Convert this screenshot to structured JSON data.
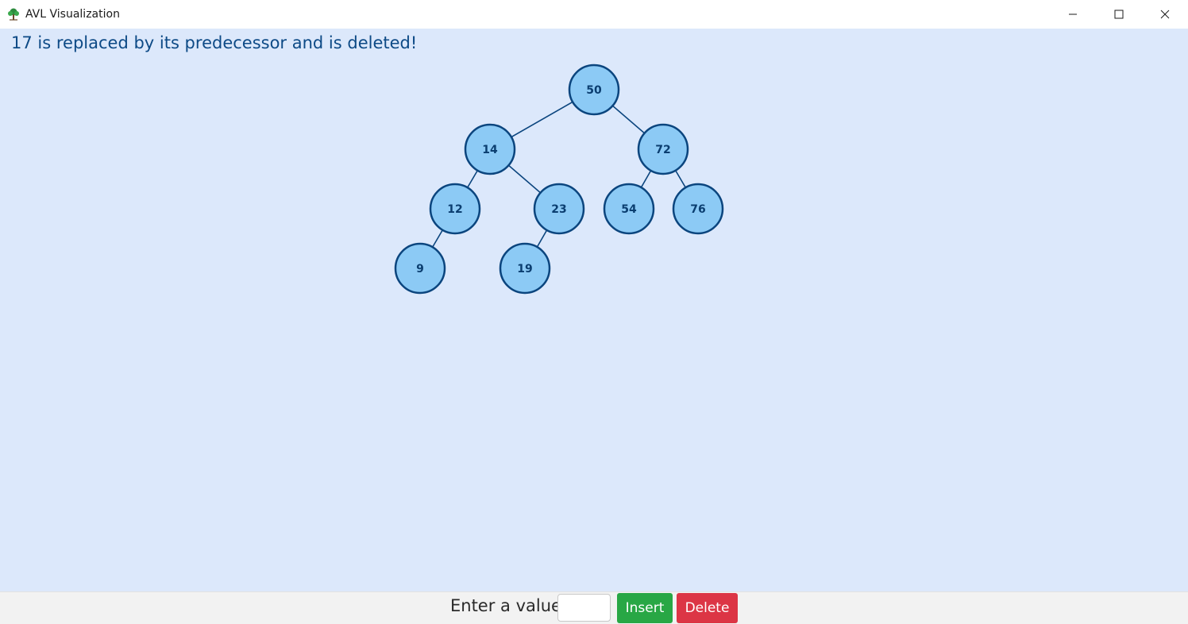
{
  "window": {
    "title": "AVL Visualization",
    "icon": "tree-icon",
    "controls": [
      "minimize-icon",
      "maximize-icon",
      "close-icon"
    ]
  },
  "status": {
    "message": "17 is replaced by its predecessor and is deleted!"
  },
  "tree": {
    "nodes": [
      {
        "id": "n50",
        "value": "50",
        "depth": 0,
        "parent": null
      },
      {
        "id": "n14",
        "value": "14",
        "depth": 1,
        "parent": "n50"
      },
      {
        "id": "n72",
        "value": "72",
        "depth": 1,
        "parent": "n50"
      },
      {
        "id": "n12",
        "value": "12",
        "depth": 2,
        "parent": "n14"
      },
      {
        "id": "n23",
        "value": "23",
        "depth": 2,
        "parent": "n14"
      },
      {
        "id": "n54",
        "value": "54",
        "depth": 2,
        "parent": "n72"
      },
      {
        "id": "n76",
        "value": "76",
        "depth": 2,
        "parent": "n72"
      },
      {
        "id": "n9",
        "value": "9",
        "depth": 3,
        "parent": "n12"
      },
      {
        "id": "n19",
        "value": "19",
        "depth": 3,
        "parent": "n23"
      }
    ]
  },
  "controls": {
    "value_label": "Enter a value",
    "value_input": {
      "value": "",
      "placeholder": ""
    },
    "insert_label": "Insert",
    "delete_label": "Delete"
  },
  "colors": {
    "canvas_background": "#dce8fb",
    "node_fill": "#8ccaf5",
    "node_stroke": "#0b457e",
    "message_text": "#0d4a86",
    "insert_button": "#28a745",
    "delete_button": "#dc3545"
  }
}
